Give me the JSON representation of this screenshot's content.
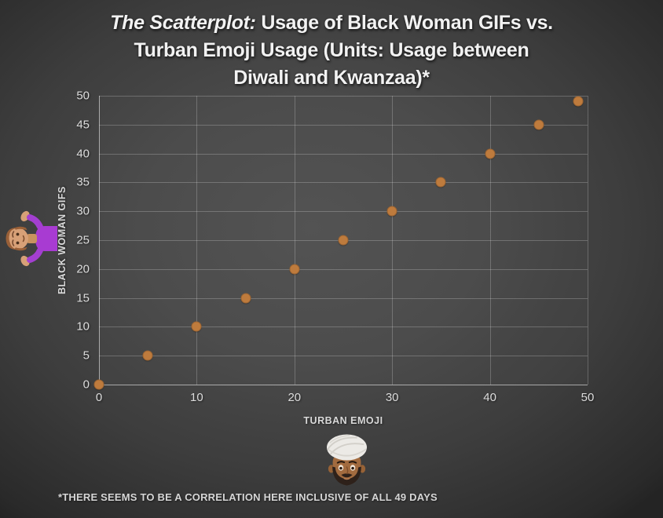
{
  "title": {
    "line1_italic": "The Scatterplot:",
    "line1_rest": "Usage of Black Woman GIFs vs.",
    "line2": "Turban Emoji Usage (Units: Usage between",
    "line3": "Diwali and Kwanzaa)*"
  },
  "chart_data": {
    "type": "scatter",
    "title": "The Scatterplot: Usage of Black Woman GIFs vs. Turban Emoji Usage (Units: Usage between Diwali and Kwanzaa)*",
    "x": [
      0,
      5,
      10,
      15,
      20,
      25,
      30,
      35,
      40,
      45,
      49
    ],
    "y": [
      0,
      5,
      10,
      15,
      20,
      25,
      30,
      35,
      40,
      45,
      49
    ],
    "xlabel": "TURBAN EMOJI",
    "ylabel": "BLACK WOMAN GIFS",
    "xlim": [
      0,
      50
    ],
    "ylim": [
      0,
      50
    ],
    "x_ticks": [
      0,
      10,
      20,
      30,
      40,
      50
    ],
    "y_ticks": [
      0,
      5,
      10,
      15,
      20,
      25,
      30,
      35,
      40,
      45,
      50
    ],
    "grid": true,
    "legend": "none",
    "marker_color": "#BE7B3D"
  },
  "footnote": "*THERE SEEMS TO BE A CORRELATION HERE INCLUSIVE OF ALL 49 DAYS",
  "icons": {
    "left_emoji": "woman-shrugging-emoji-rotated",
    "bottom_emoji": "man-wearing-turban-emoji"
  },
  "colors": {
    "background_center": "#515151",
    "background_edge": "#242424",
    "gridline": "rgba(255,255,255,0.22)",
    "axis_line": "rgba(255,255,255,0.55)",
    "marker": "#BE7B3D",
    "title_text": "#f2f2f2",
    "tick_text": "#dcdcdc",
    "label_text": "#d9d9d9"
  }
}
